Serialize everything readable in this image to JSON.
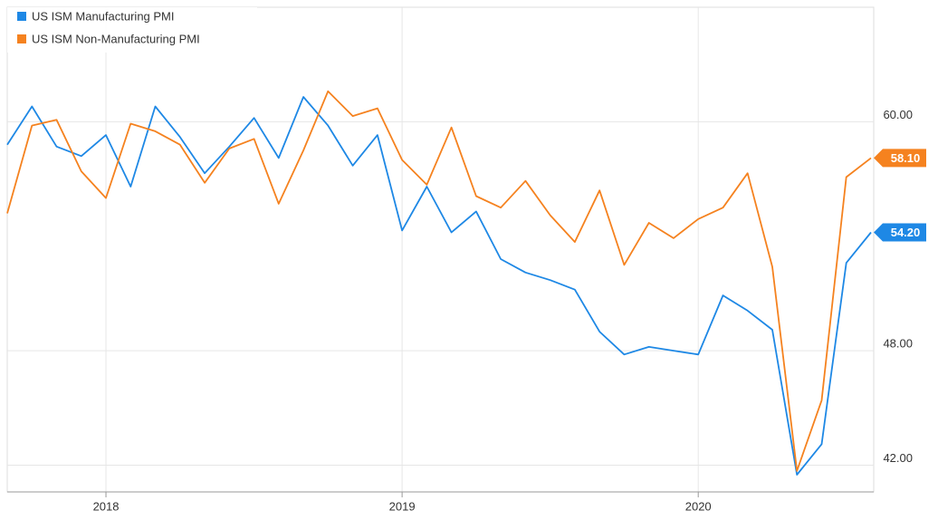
{
  "chart_data": {
    "type": "line",
    "categories": [
      null,
      null,
      null,
      null,
      "2018",
      null,
      null,
      null,
      null,
      null,
      null,
      null,
      null,
      null,
      null,
      null,
      "2019",
      null,
      null,
      null,
      null,
      null,
      null,
      null,
      null,
      null,
      null,
      null,
      "2020",
      null,
      null,
      null,
      null,
      null,
      null,
      null
    ],
    "series": [
      {
        "name": "US ISM Manufacturing PMI",
        "color": "#1e88e5",
        "values": [
          58.8,
          60.8,
          58.7,
          58.2,
          59.3,
          56.6,
          60.8,
          59.2,
          57.3,
          58.7,
          60.2,
          58.1,
          61.3,
          59.8,
          57.7,
          59.3,
          54.3,
          56.6,
          54.2,
          55.3,
          52.8,
          52.1,
          51.7,
          51.2,
          49.0,
          47.8,
          48.2,
          48.0,
          47.8,
          50.9,
          50.1,
          49.1,
          41.5,
          43.1,
          52.6,
          54.2
        ],
        "value_labels": [
          null,
          null,
          null,
          null,
          null,
          null,
          null,
          null,
          null,
          null,
          null,
          null,
          null,
          null,
          null,
          null,
          null,
          null,
          null,
          null,
          null,
          null,
          null,
          null,
          null,
          null,
          null,
          null,
          null,
          null,
          null,
          null,
          null,
          null,
          null,
          "54.20"
        ]
      },
      {
        "name": "US ISM Non-Manufacturing PMI",
        "color": "#f5821f",
        "values": [
          55.2,
          59.8,
          60.1,
          57.4,
          56.0,
          59.9,
          59.5,
          58.8,
          56.8,
          58.6,
          59.1,
          55.7,
          58.5,
          61.6,
          60.3,
          60.7,
          58.0,
          56.7,
          59.7,
          56.1,
          55.5,
          56.9,
          55.1,
          53.7,
          56.4,
          52.5,
          54.7,
          53.9,
          54.9,
          55.5,
          57.3,
          52.4,
          41.7,
          45.4,
          57.1,
          58.1
        ],
        "value_labels": [
          null,
          null,
          null,
          null,
          null,
          null,
          null,
          null,
          null,
          null,
          null,
          null,
          null,
          null,
          null,
          null,
          null,
          null,
          null,
          null,
          null,
          null,
          null,
          null,
          null,
          null,
          null,
          null,
          null,
          null,
          null,
          null,
          null,
          null,
          null,
          "58.10"
        ]
      }
    ],
    "ylim": [
      40.6,
      66
    ],
    "yticks": [
      {
        "value": 42,
        "label": "42.00"
      },
      {
        "value": 48,
        "label": "48.00"
      },
      {
        "value": 60,
        "label": "60.00"
      }
    ],
    "grid": true,
    "legend": "top-left"
  }
}
